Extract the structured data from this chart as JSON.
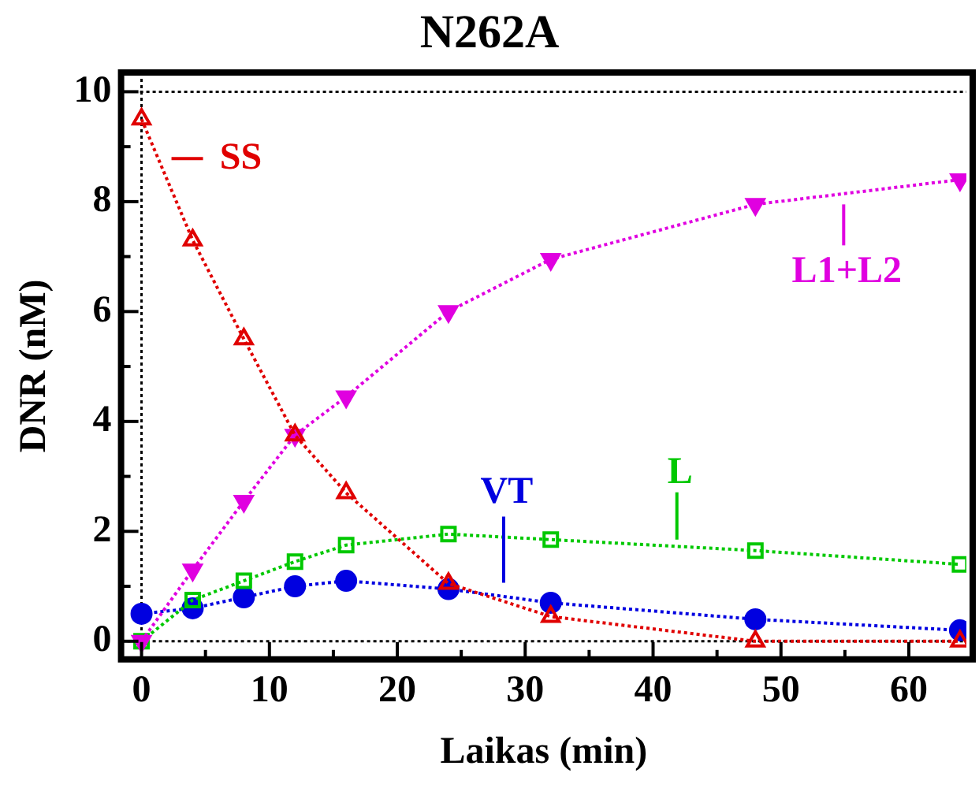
{
  "chart_data": {
    "type": "line",
    "title": "N262A",
    "xlabel": "Laikas (min)",
    "ylabel": "DNR (nM)",
    "x": [
      0,
      4,
      8,
      12,
      16,
      24,
      32,
      48,
      64
    ],
    "series": [
      {
        "name": "SS",
        "color": "#e00000",
        "marker": "triangle",
        "values": [
          9.5,
          7.3,
          5.5,
          3.75,
          2.7,
          1.05,
          0.45,
          0,
          0
        ]
      },
      {
        "name": "L1+L2",
        "color": "#e000e0",
        "marker": "triangle",
        "values": [
          0,
          1.3,
          2.55,
          3.75,
          4.45,
          6.0,
          6.95,
          7.95,
          8.4
        ]
      },
      {
        "name": "L",
        "color": "#00c800",
        "marker": "square",
        "values": [
          0,
          0.75,
          1.1,
          1.45,
          1.75,
          1.95,
          1.85,
          1.65,
          1.4
        ]
      },
      {
        "name": "VT",
        "color": "#0000e0",
        "marker": "circle",
        "values": [
          0.5,
          0.6,
          0.8,
          1.0,
          1.1,
          0.95,
          0.7,
          0.4,
          0.2
        ]
      }
    ],
    "xlim": [
      -1.6,
      64.5
    ],
    "ylim": [
      -0.33,
      10.35
    ],
    "xticks": [
      0,
      {
        "value": 5,
        "label": null
      },
      10,
      {
        "value": 15,
        "label": null
      },
      20,
      {
        "value": 25,
        "label": null
      },
      30,
      {
        "value": 35,
        "label": null
      },
      40,
      {
        "value": 45,
        "label": null
      },
      50,
      {
        "value": 55,
        "label": null
      },
      60
    ],
    "yticks": [
      0,
      {
        "value": 1,
        "label": null
      },
      2,
      {
        "value": 3,
        "label": null
      },
      4,
      {
        "value": 5,
        "label": null
      },
      6,
      {
        "value": 7,
        "label": null
      },
      8,
      {
        "value": 9,
        "label": null
      },
      10
    ],
    "ref_lines": [
      {
        "axis": "y",
        "value": 0,
        "color": "#000000",
        "line_style": "dotted"
      },
      {
        "axis": "y",
        "value": 10,
        "color": "#000000",
        "line_style": "dotted"
      },
      {
        "axis": "x",
        "value": 0,
        "color": "#000000",
        "line_style": "dotted"
      }
    ],
    "line_style": "dotted",
    "grid": false,
    "legend": "top left"
  }
}
